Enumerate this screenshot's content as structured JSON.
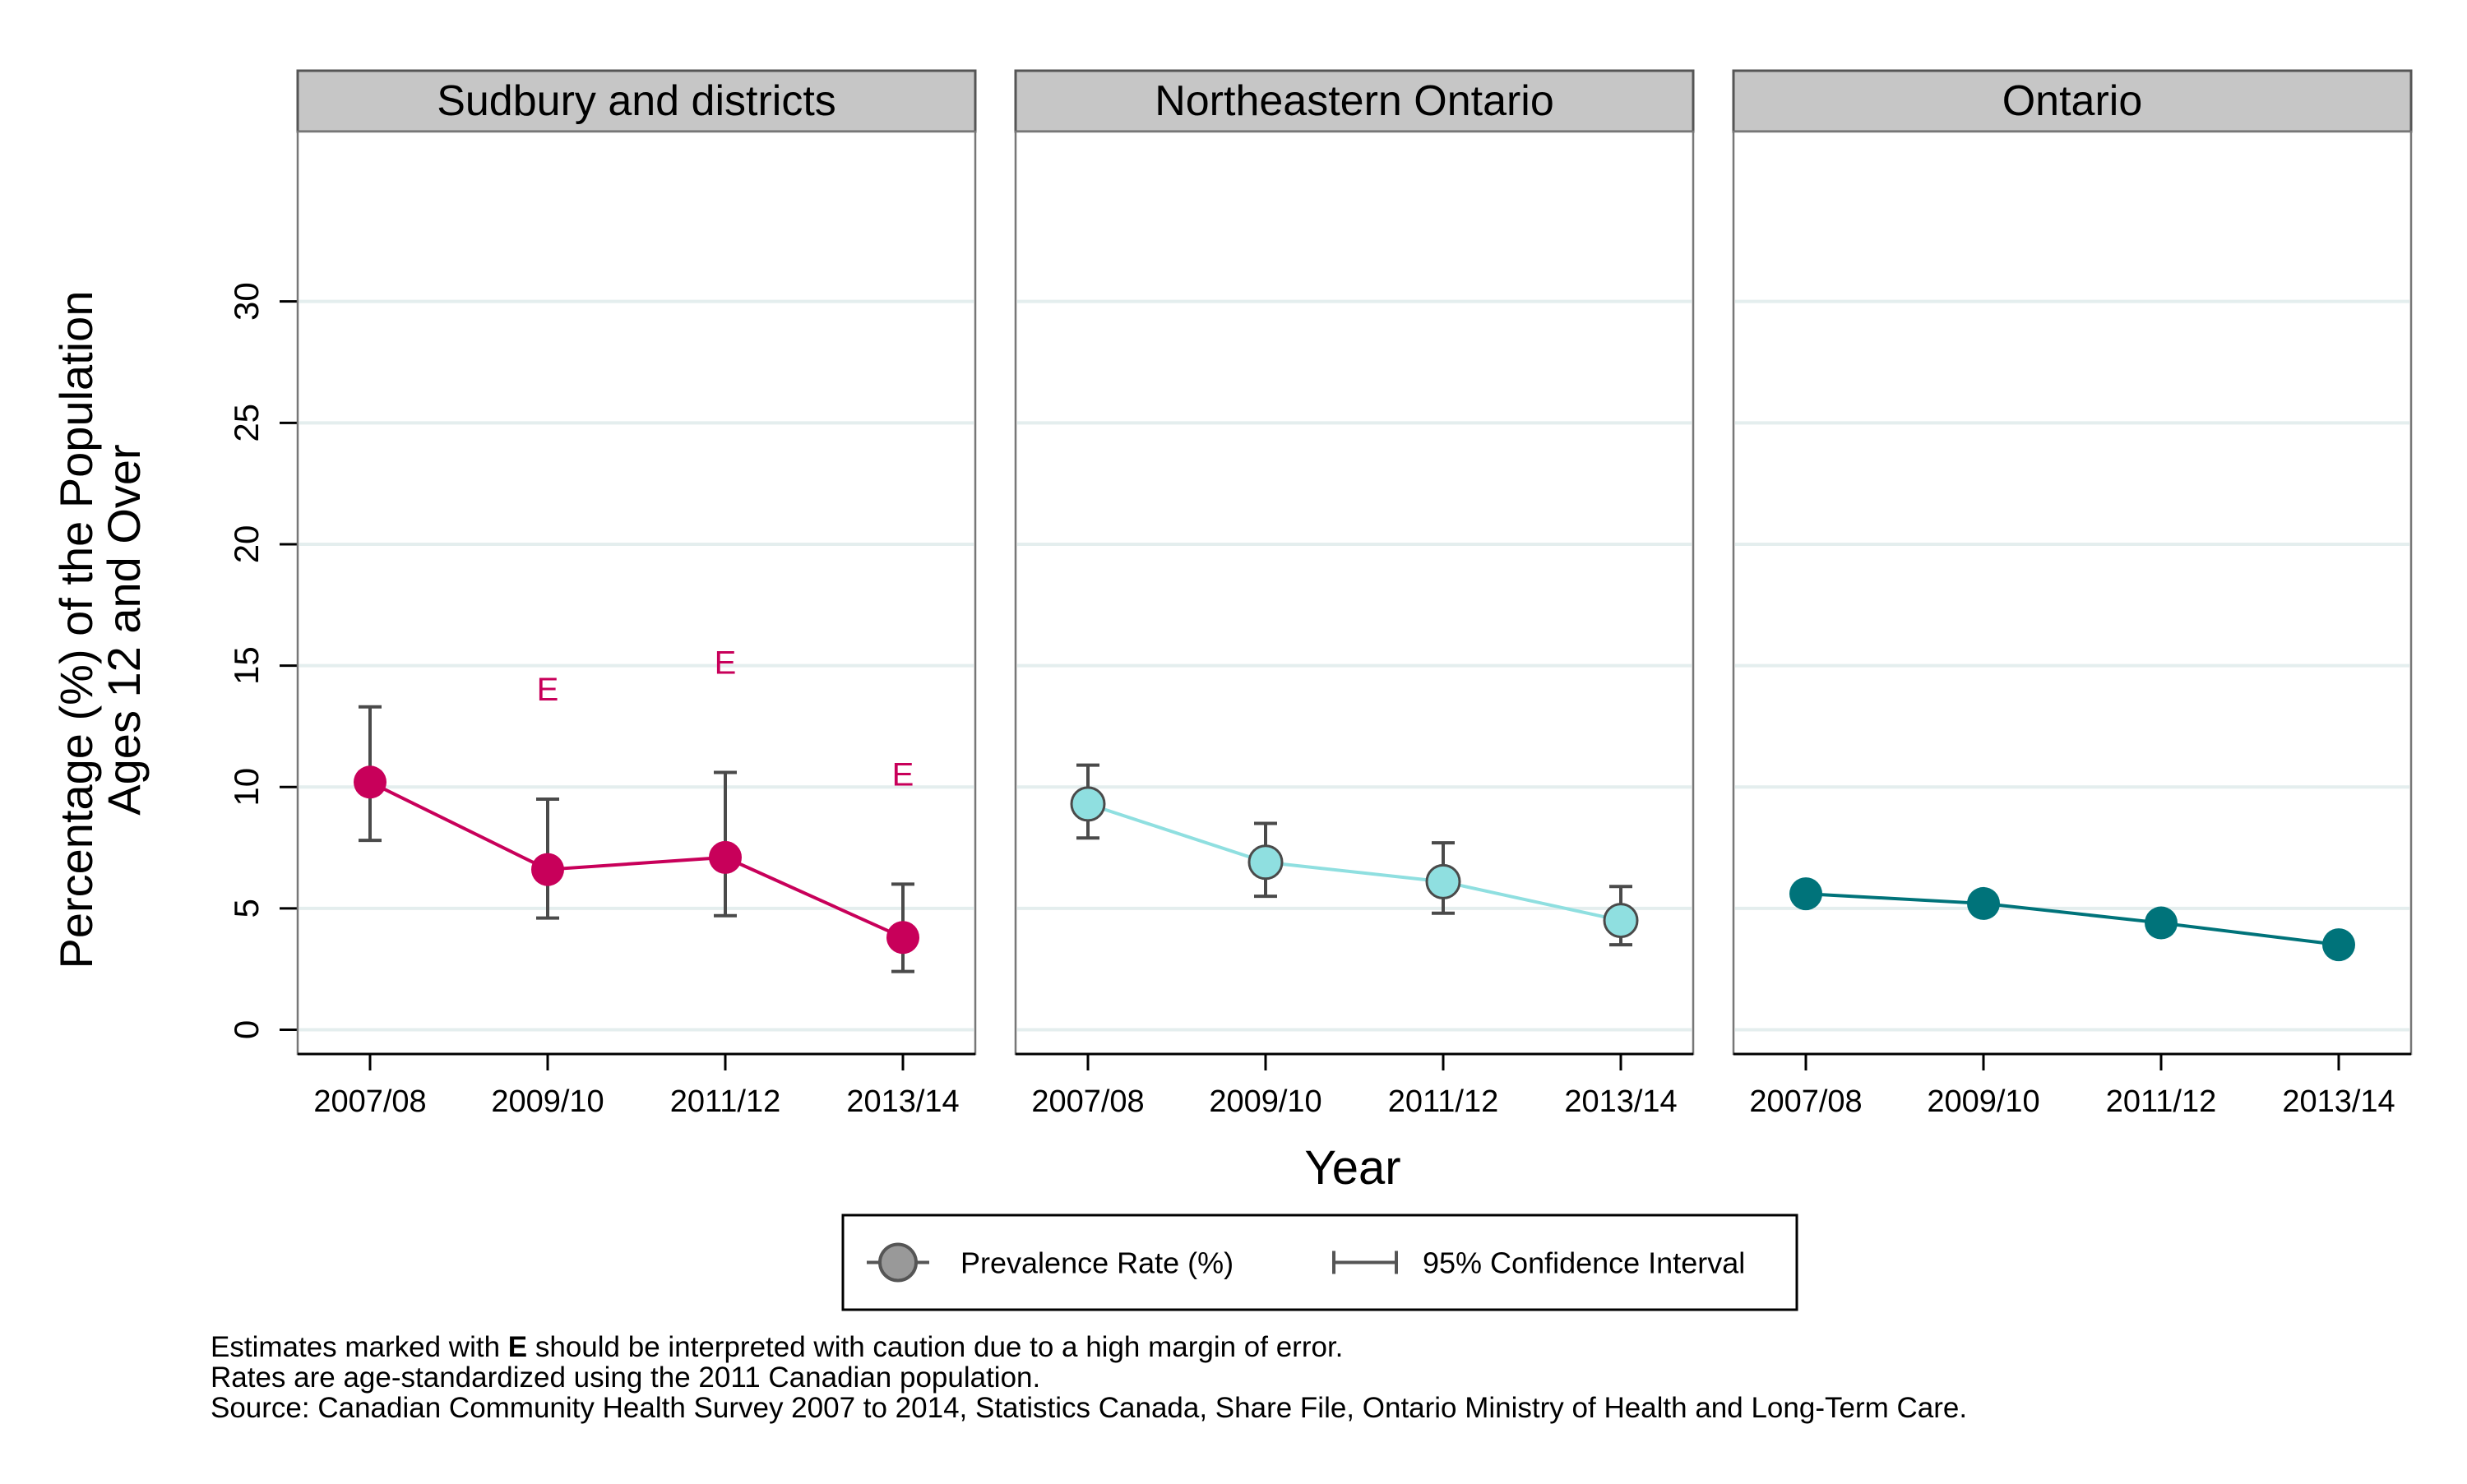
{
  "chart_data": {
    "type": "line",
    "ylabel_line1": "Percentage (%) of the Population",
    "ylabel_line2": "Ages 12 and Over",
    "xlabel": "Year",
    "ylim": [
      -1,
      37
    ],
    "yticks": [
      0,
      5,
      10,
      15,
      20,
      25,
      30
    ],
    "categories": [
      "2007/08",
      "2009/10",
      "2011/12",
      "2013/14"
    ],
    "grid": true,
    "legend": {
      "placement": "bottom-center",
      "rate_label": "Prevalence Rate (%)",
      "ci_label": "95% Confidence Interval"
    },
    "panels": [
      {
        "title": "Sudbury and districts",
        "color": "#c8005a",
        "marker_fill": "#c8005a",
        "line_color": "#c8005a",
        "values": [
          10.2,
          6.6,
          7.1,
          3.8
        ],
        "ci_low": [
          7.8,
          4.6,
          4.7,
          2.4
        ],
        "ci_high": [
          13.3,
          9.5,
          10.6,
          6.0
        ],
        "flags": [
          "",
          "E",
          "E",
          "E"
        ]
      },
      {
        "title": "Northeastern Ontario",
        "color": "#8fdfe0",
        "marker_fill": "#8fdfe0",
        "line_color": "#8fdfe0",
        "values": [
          9.3,
          6.9,
          6.1,
          4.5
        ],
        "ci_low": [
          7.9,
          5.5,
          4.8,
          3.5
        ],
        "ci_high": [
          10.9,
          8.5,
          7.7,
          5.9
        ],
        "flags": [
          "",
          "",
          "",
          ""
        ]
      },
      {
        "title": "Ontario",
        "color": "#00737a",
        "marker_fill": "#00737a",
        "line_color": "#00737a",
        "values": [
          5.6,
          5.2,
          4.4,
          3.5
        ],
        "ci_low": [
          5.3,
          4.9,
          4.1,
          3.2
        ],
        "ci_high": [
          5.9,
          5.5,
          4.7,
          3.8
        ],
        "flags": [
          "",
          "",
          "",
          ""
        ]
      }
    ]
  },
  "footnotes": {
    "line1_prefix": "Estimates marked with ",
    "line1_bold": "E",
    "line1_suffix": " should be interpreted with caution due to a high margin of error.",
    "line2": "Rates are age-standardized using the 2011 Canadian population.",
    "line3": "Source: Canadian Community Health Survey 2007 to 2014, Statistics Canada, Share File, Ontario Ministry of Health and Long-Term Care."
  },
  "colors": {
    "strip_fill": "#c6c6c6",
    "grid": "#e4eeee",
    "ci": "#4a4a4a",
    "legend_marker": "#999999"
  }
}
